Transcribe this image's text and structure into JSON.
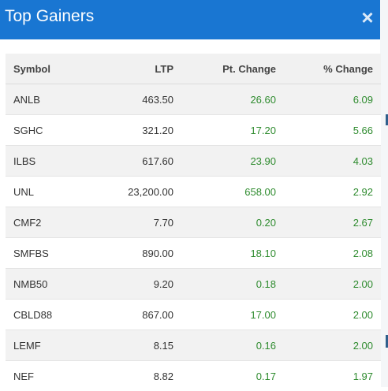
{
  "modal": {
    "title": "Top Gainers",
    "close_icon": "close-icon",
    "close_glyph": "×"
  },
  "table": {
    "headers": {
      "symbol": "Symbol",
      "ltp": "LTP",
      "pt_change": "Pt. Change",
      "pct_change": "% Change"
    },
    "rows": [
      {
        "symbol": "ANLB",
        "ltp": "463.50",
        "pt_change": "26.60",
        "pct_change": "6.09"
      },
      {
        "symbol": "SGHC",
        "ltp": "321.20",
        "pt_change": "17.20",
        "pct_change": "5.66"
      },
      {
        "symbol": "ILBS",
        "ltp": "617.60",
        "pt_change": "23.90",
        "pct_change": "4.03"
      },
      {
        "symbol": "UNL",
        "ltp": "23,200.00",
        "pt_change": "658.00",
        "pct_change": "2.92"
      },
      {
        "symbol": "CMF2",
        "ltp": "7.70",
        "pt_change": "0.20",
        "pct_change": "2.67"
      },
      {
        "symbol": "SMFBS",
        "ltp": "890.00",
        "pt_change": "18.10",
        "pct_change": "2.08"
      },
      {
        "symbol": "NMB50",
        "ltp": "9.20",
        "pt_change": "0.18",
        "pct_change": "2.00"
      },
      {
        "symbol": "CBLD88",
        "ltp": "867.00",
        "pt_change": "17.00",
        "pct_change": "2.00"
      },
      {
        "symbol": "LEMF",
        "ltp": "8.15",
        "pt_change": "0.16",
        "pct_change": "2.00"
      },
      {
        "symbol": "NEF",
        "ltp": "8.82",
        "pt_change": "0.17",
        "pct_change": "1.97"
      }
    ]
  },
  "colors": {
    "header_blue": "#1976d2",
    "gain_green": "#2e8b2e",
    "row_stripe": "#f2f2f2"
  }
}
